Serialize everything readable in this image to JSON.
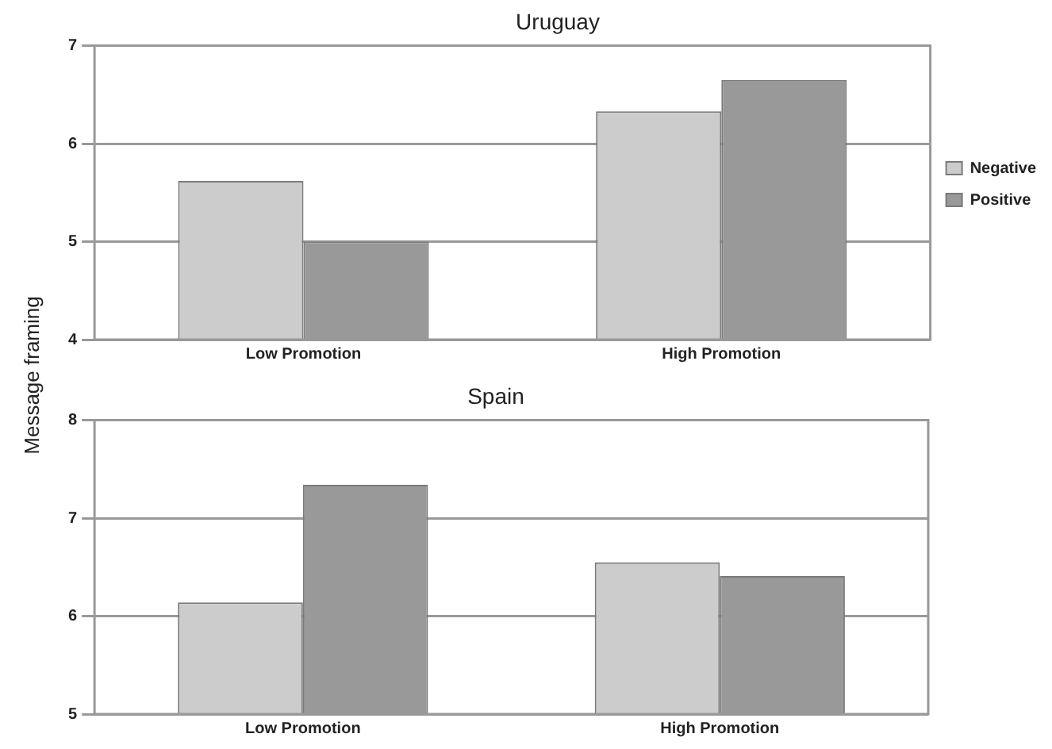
{
  "chart_data": [
    {
      "type": "bar",
      "title": "Uruguay",
      "ylabel": "Message framing",
      "categories": [
        "Low Promotion",
        "High Promotion"
      ],
      "series": [
        {
          "name": "Negative",
          "color": "#cccccc",
          "values": [
            5.62,
            6.33
          ]
        },
        {
          "name": "Positive",
          "color": "#999999",
          "values": [
            5.0,
            6.65
          ]
        }
      ],
      "ylim": [
        4,
        7
      ],
      "yticks": [
        4,
        5,
        6,
        7
      ],
      "grid": "y",
      "legend": "right"
    },
    {
      "type": "bar",
      "title": "Spain",
      "categories": [
        "Low Promotion",
        "High Promotion"
      ],
      "series": [
        {
          "color": "#cccccc",
          "values": [
            6.14,
            6.55
          ]
        },
        {
          "color": "#999999",
          "values": [
            7.34,
            6.41
          ]
        }
      ],
      "ylim": [
        5,
        8
      ],
      "yticks": [
        5,
        6,
        7,
        8
      ],
      "grid": "y"
    }
  ]
}
